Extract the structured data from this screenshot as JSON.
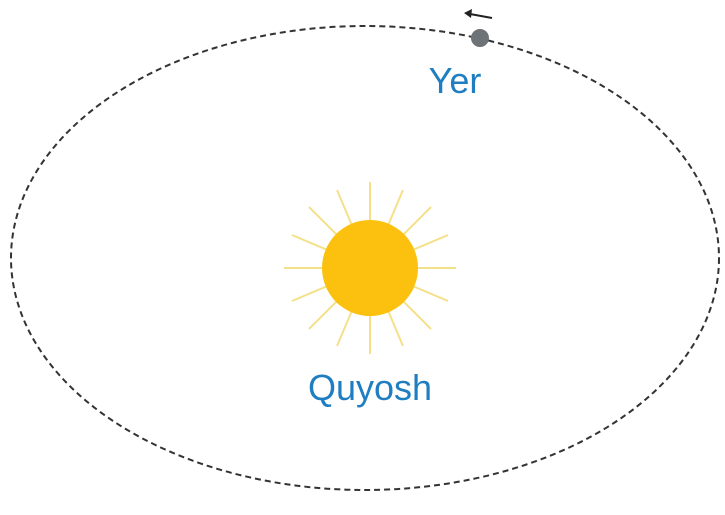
{
  "labels": {
    "earth": "Yer",
    "sun": "Quyosh"
  }
}
